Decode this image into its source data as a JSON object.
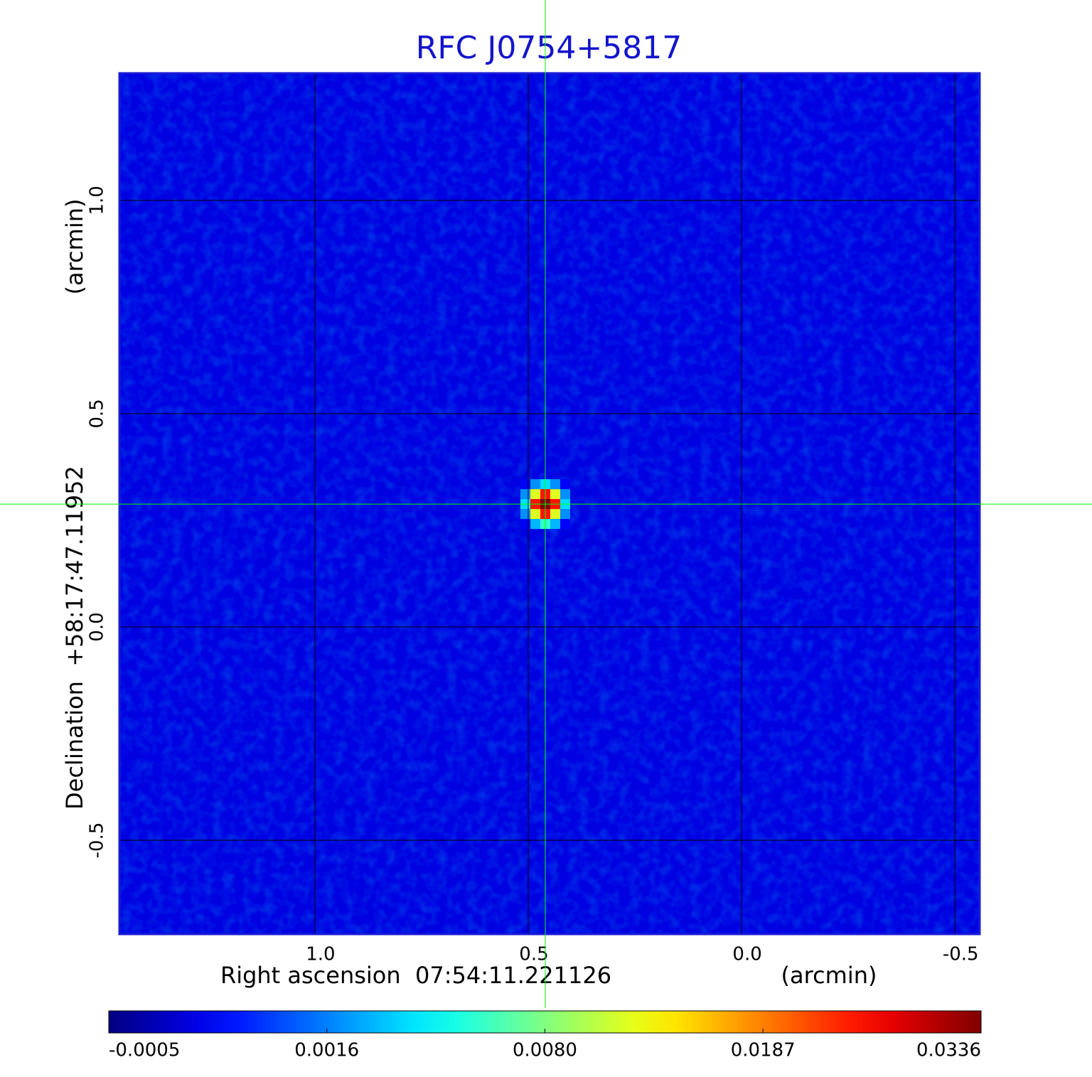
{
  "chart_data": {
    "type": "image",
    "title": "RFC J0754+5817",
    "xlabel": "Right ascension  07:54:11.221126",
    "xunit": "(arcmin)",
    "ylabel": "Declination  +58:17:47.11952",
    "yunit": "(arcmin)",
    "xlim": [
      1.458,
      -0.558
    ],
    "xticks": [
      {
        "value": 1,
        "label": "1.0"
      },
      0.5,
      {
        "value": 0,
        "label": "0.0"
      },
      -0.5
    ],
    "ylim": [
      -0.72,
      1.298
    ],
    "yticks": [
      {
        "value": 1,
        "label": "1.0"
      },
      0.5,
      {
        "value": 0,
        "label": "0.0"
      },
      -0.5
    ],
    "grid": true,
    "colormap": "jet",
    "crosshair": {
      "x": 0.46,
      "y": 0.288,
      "color": "#00ff00"
    },
    "background": 0.0003,
    "source_pixels": [
      [
        0.0005,
        0.002,
        0.004,
        0.002,
        0.0005
      ],
      [
        0.002,
        0.012,
        0.025,
        0.012,
        0.002
      ],
      [
        0.004,
        0.025,
        0.0336,
        0.025,
        0.004
      ],
      [
        0.002,
        0.012,
        0.025,
        0.012,
        0.002
      ],
      [
        0.0005,
        0.003,
        0.006,
        0.003,
        0.0005
      ]
    ],
    "colorbar_lim": [
      -0.0005,
      0.0336
    ],
    "colorbar_ticks": [
      -0.0005,
      0.0016,
      {
        "value": 0.008,
        "label": "0.0080"
      },
      0.0187,
      0.0336
    ]
  }
}
